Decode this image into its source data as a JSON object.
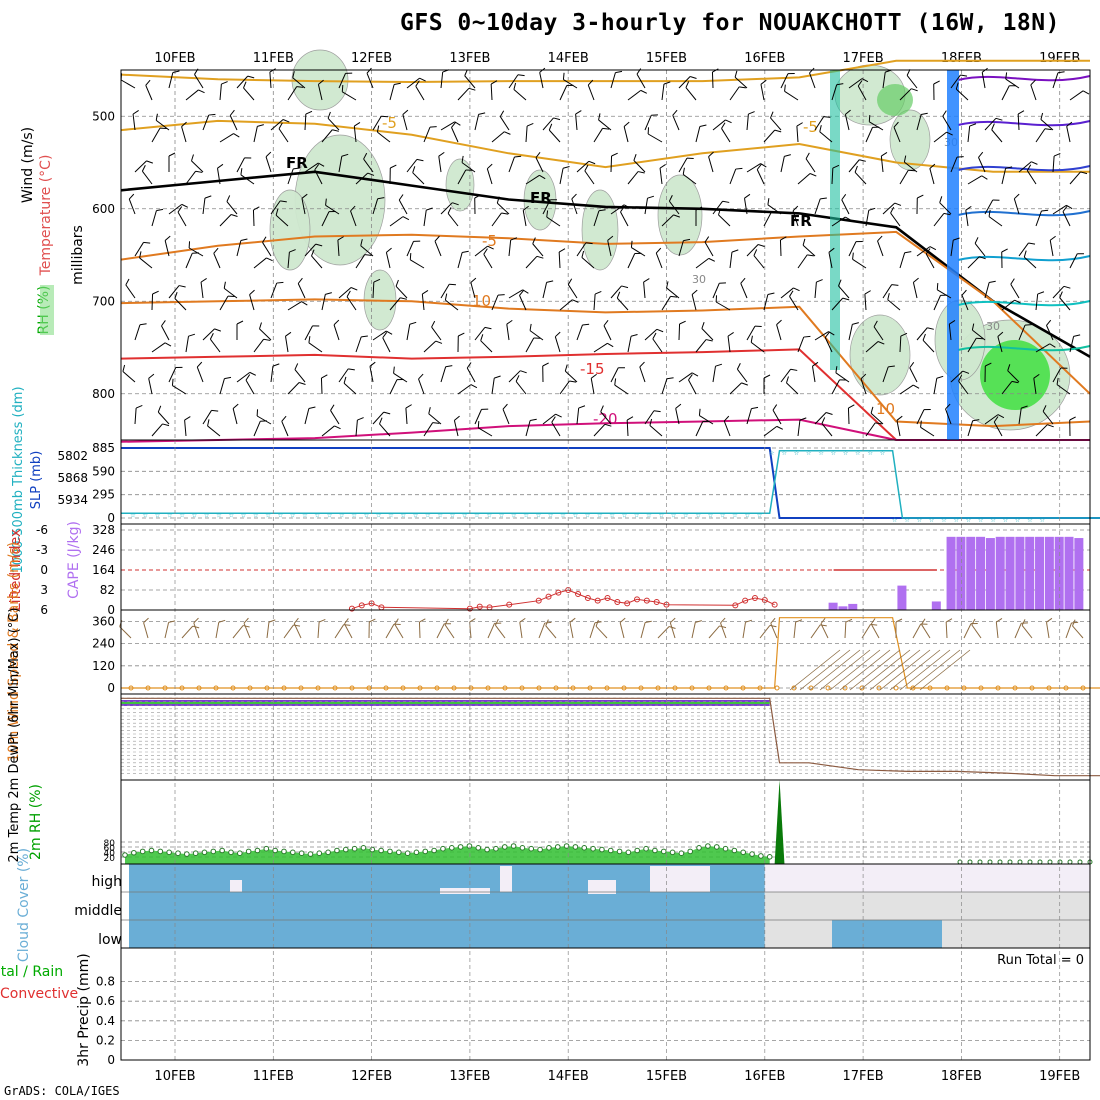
{
  "title": "GFS 0~10day 3-hourly for NOUAKCHOTT (16W, 18N)",
  "footer": "GrADS: COLA/IGES",
  "run_total": "Run Total = 0",
  "colors": {
    "temp_warm": "#e07a20",
    "temp_cool": "#e0a020",
    "temp_hot": "#e03030",
    "temp_hotter": "#d0107a",
    "freezing": "#000000",
    "rh_fill": "#cfe8cf",
    "wind_barb": "#000000",
    "thickness": "#20b0c0",
    "slp": "#1040c0",
    "lifted_index": "#d03030",
    "cape": "#b070f0",
    "wind_speed": "#e09020",
    "wind_barb_10m": "#8b6a40",
    "rh2m": "#00a000",
    "cloud": "#6aaed6",
    "cloud_clear": "#f3eef7",
    "cloud_low_gray": "#e2e2e2",
    "grid": "#888888"
  },
  "chart_data": [
    {
      "panel": "upper_air",
      "type": "contour",
      "y_label_rh": "RH (%)",
      "y_label_temp": "Temperature (°C)",
      "y_label_wind": "Wind (m/s)",
      "y_label_units": "millibars",
      "x_ticks": [
        "10FEB",
        "11FEB",
        "12FEB",
        "13FEB",
        "14FEB",
        "15FEB",
        "16FEB",
        "17FEB",
        "18FEB",
        "19FEB"
      ],
      "y_ticks": [
        500,
        600,
        700,
        800
      ],
      "ylim": [
        850,
        450
      ],
      "contour_labels": [
        "-5",
        "-5",
        "FR",
        "FR",
        "FR",
        "-5",
        "10",
        "-15",
        "-20",
        "10",
        "30",
        "30",
        "30"
      ],
      "isotherms": [
        {
          "label": "-5",
          "levels": [
            455,
            460,
            462,
            463,
            462,
            462,
            462,
            458,
            440,
            440,
            440
          ]
        },
        {
          "label": "-5b",
          "levels": [
            515,
            505,
            508,
            520,
            540,
            555,
            540,
            530,
            550,
            560,
            560
          ]
        },
        {
          "label": "FR",
          "levels": [
            580,
            570,
            560,
            575,
            590,
            598,
            600,
            605,
            620,
            700,
            760
          ]
        },
        {
          "label": "5",
          "levels": [
            655,
            640,
            630,
            628,
            632,
            638,
            636,
            630,
            625,
            700,
            800
          ]
        },
        {
          "label": "10",
          "levels": [
            702,
            700,
            698,
            700,
            708,
            712,
            710,
            706,
            830,
            835,
            830
          ]
        },
        {
          "label": "15",
          "levels": [
            762,
            760,
            758,
            762,
            760,
            757,
            755,
            752,
            850,
            850,
            850
          ]
        },
        {
          "label": "20",
          "levels": [
            852,
            850,
            848,
            842,
            835,
            832,
            830,
            828,
            850,
            850,
            850
          ]
        }
      ]
    },
    {
      "panel": "thickness_slp",
      "type": "line",
      "y_label_left": "1000-500mb Thickness (dm)",
      "y_label_right": "SLP (mb)",
      "left_ticks": [
        "5802",
        "5868",
        "5934"
      ],
      "right_ticks": [
        "885",
        "590",
        "295",
        "0"
      ],
      "ylim": [
        0,
        885
      ],
      "slp": {
        "x": [
          0,
          6.6,
          6.7,
          10
        ],
        "values": [
          885,
          885,
          0,
          0
        ]
      },
      "thickness": {
        "x": [
          0,
          6.6,
          6.7,
          7.85,
          7.95,
          10
        ],
        "values": [
          60,
          60,
          850,
          850,
          0,
          0
        ]
      }
    },
    {
      "panel": "stability",
      "type": "bar",
      "y_label_left": "Lifted Index",
      "y_label_right": "CAPE (J/kg)",
      "li_ticks": [
        "-6",
        "-3",
        "0",
        "3",
        "6"
      ],
      "cape_ticks": [
        "328",
        "246",
        "164",
        "82",
        "0"
      ],
      "li_ylim": [
        6,
        -6
      ],
      "cape_ylim": [
        0,
        328
      ],
      "lifted_index": {
        "x": [
          1.8,
          1.9,
          2.0,
          2.1,
          3.0,
          3.1,
          3.2,
          3.4,
          3.7,
          3.8,
          3.9,
          4.0,
          4.1,
          4.2,
          4.3,
          4.4,
          4.5,
          4.6,
          4.7,
          4.8,
          4.9,
          5.0,
          5.7,
          5.8,
          5.9,
          6.0,
          6.1
        ],
        "values": [
          5.8,
          5.3,
          5.0,
          5.6,
          5.8,
          5.5,
          5.6,
          5.2,
          4.6,
          4.0,
          3.4,
          3.0,
          3.6,
          4.2,
          4.6,
          4.2,
          4.8,
          5.0,
          4.4,
          4.6,
          4.8,
          5.2,
          5.3,
          4.6,
          4.2,
          4.5,
          5.2
        ]
      },
      "cape": {
        "x": [
          6.7,
          6.8,
          6.9,
          7.4,
          7.75,
          7.9,
          8.0,
          8.1,
          8.2,
          8.3,
          8.4,
          8.5,
          8.6,
          8.7,
          8.8,
          8.9,
          9.0,
          9.1,
          9.2
        ],
        "values": [
          30,
          15,
          25,
          100,
          35,
          300,
          300,
          300,
          300,
          295,
          300,
          300,
          300,
          300,
          300,
          300,
          300,
          300,
          295
        ]
      }
    },
    {
      "panel": "wind10m",
      "type": "line",
      "y_label": "10m Wind Speed & Barbs (m/s)",
      "y_ticks": [
        "360",
        "240",
        "120",
        "0"
      ],
      "ylim": [
        0,
        400
      ],
      "speed": {
        "x": [
          0,
          6.65,
          6.7,
          7.85,
          8.0,
          10
        ],
        "values": [
          0,
          0,
          380,
          380,
          0,
          0
        ]
      }
    },
    {
      "panel": "temp2m",
      "type": "line",
      "y_label": "2m Temp 2m DewPt (6hr Min/Max) (°C)",
      "profile": {
        "x": [
          0,
          6.6,
          6.7,
          7.0,
          7.5,
          8.0,
          8.5,
          9.0,
          9.5,
          10
        ],
        "values": [
          0.95,
          0.95,
          0.2,
          0.2,
          0.12,
          0.1,
          0.1,
          0.08,
          0.05,
          0.05
        ]
      }
    },
    {
      "panel": "rh2m",
      "type": "area",
      "y_label": "2m RH (%)",
      "y_ticks": [
        "80",
        "60",
        "40",
        "20"
      ],
      "ylim": [
        0,
        100
      ],
      "values": [
        20,
        25,
        28,
        30,
        28,
        26,
        24,
        22,
        24,
        26,
        28,
        30,
        26,
        24,
        28,
        30,
        34,
        30,
        28,
        26,
        24,
        22,
        24,
        26,
        30,
        32,
        34,
        36,
        32,
        30,
        28,
        26,
        24,
        26,
        28,
        30,
        34,
        36,
        38,
        40,
        36,
        32,
        34,
        38,
        40,
        36,
        34,
        32,
        36,
        38,
        40,
        38,
        36,
        34,
        32,
        30,
        28,
        26,
        30,
        34,
        30,
        28,
        26,
        24,
        28,
        36,
        40,
        38,
        34,
        30,
        26,
        22,
        18,
        16
      ]
    },
    {
      "panel": "cloud_cover",
      "type": "heatmap",
      "y_label": "Cloud Cover (%)",
      "levels": [
        "high",
        "middle",
        "low"
      ],
      "coverage_end_day": 6.55
    },
    {
      "panel": "precip",
      "type": "line",
      "y_label_total": "Total / Rain",
      "y_label_convective": "Convective",
      "y_label": "3hr Precip (mm)",
      "y_ticks": [
        "0.8",
        "0.6",
        "0.4",
        "0.2",
        "0"
      ],
      "ylim": [
        0,
        1
      ]
    }
  ]
}
